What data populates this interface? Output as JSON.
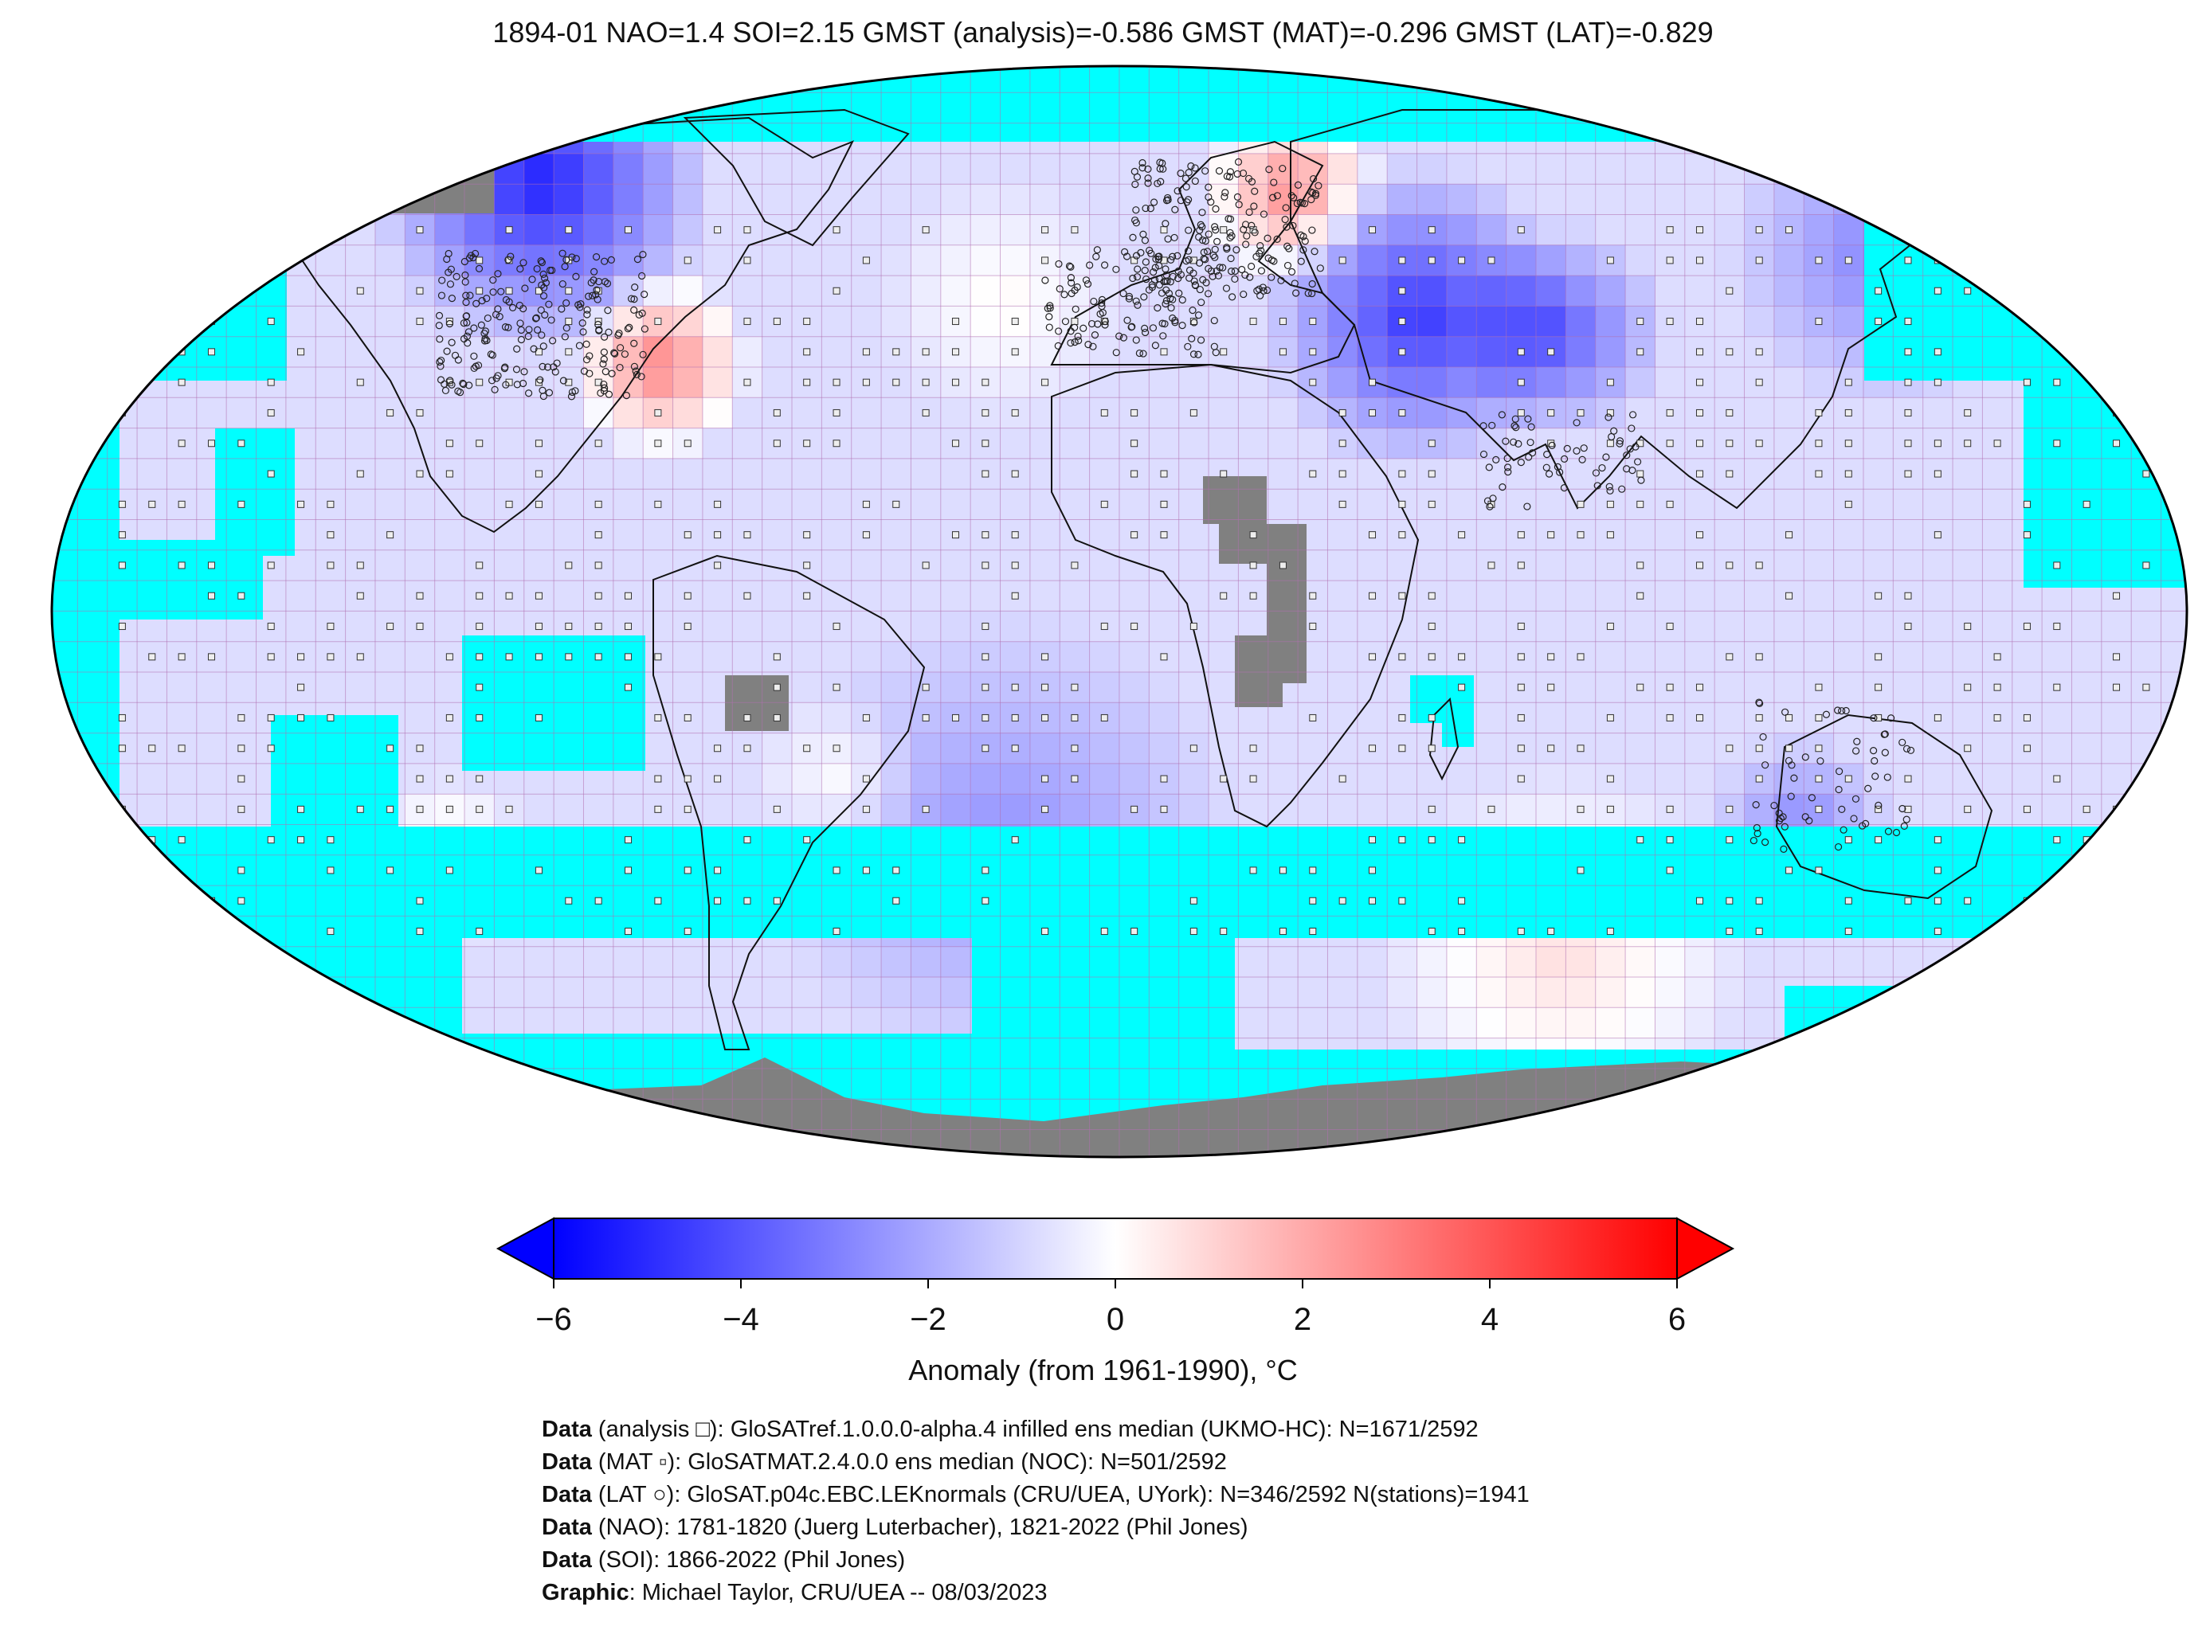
{
  "title": "1894-01 NAO=1.4 SOI=2.15 GMST (analysis)=-0.586 GMST (MAT)=-0.296 GMST (LAT)=-0.829",
  "colorbar": {
    "label": "Anomaly (from 1961-1990), °C",
    "ticks": [
      "−6",
      "−4",
      "−2",
      "0",
      "2",
      "4",
      "6"
    ],
    "tick_values": [
      -6,
      -4,
      -2,
      0,
      2,
      4,
      6
    ],
    "colors": {
      "cold": "#0000ff",
      "neutral": "#ffffff",
      "warm": "#ff0000"
    }
  },
  "legend_colors": {
    "no_data_ocean": "#00ffff",
    "land_missing": "#808080",
    "grid_line": "#b070b0"
  },
  "credits": [
    {
      "key": "Data",
      "text": " (analysis □): GloSATref.1.0.0.0-alpha.4 infilled ens median (UKMO-HC): N=1671/2592"
    },
    {
      "key": "Data",
      "text": " (MAT ▫): GloSATMAT.2.4.0.0 ens median (NOC): N=501/2592"
    },
    {
      "key": "Data",
      "text": " (LAT ○): GloSAT.p04c.EBC.LEKnormals (CRU/UEA, UYork): N=346/2592 N(stations)=1941"
    },
    {
      "key": "Data",
      "text": " (NAO): 1781-1820 (Juerg Luterbacher), 1821-2022 (Phil Jones)"
    },
    {
      "key": "Data",
      "text": " (SOI): 1866-2022 (Phil Jones)"
    },
    {
      "key": "Graphic",
      "text": ": Michael Taylor, CRU/UEA -- 08/03/2023"
    }
  ]
}
